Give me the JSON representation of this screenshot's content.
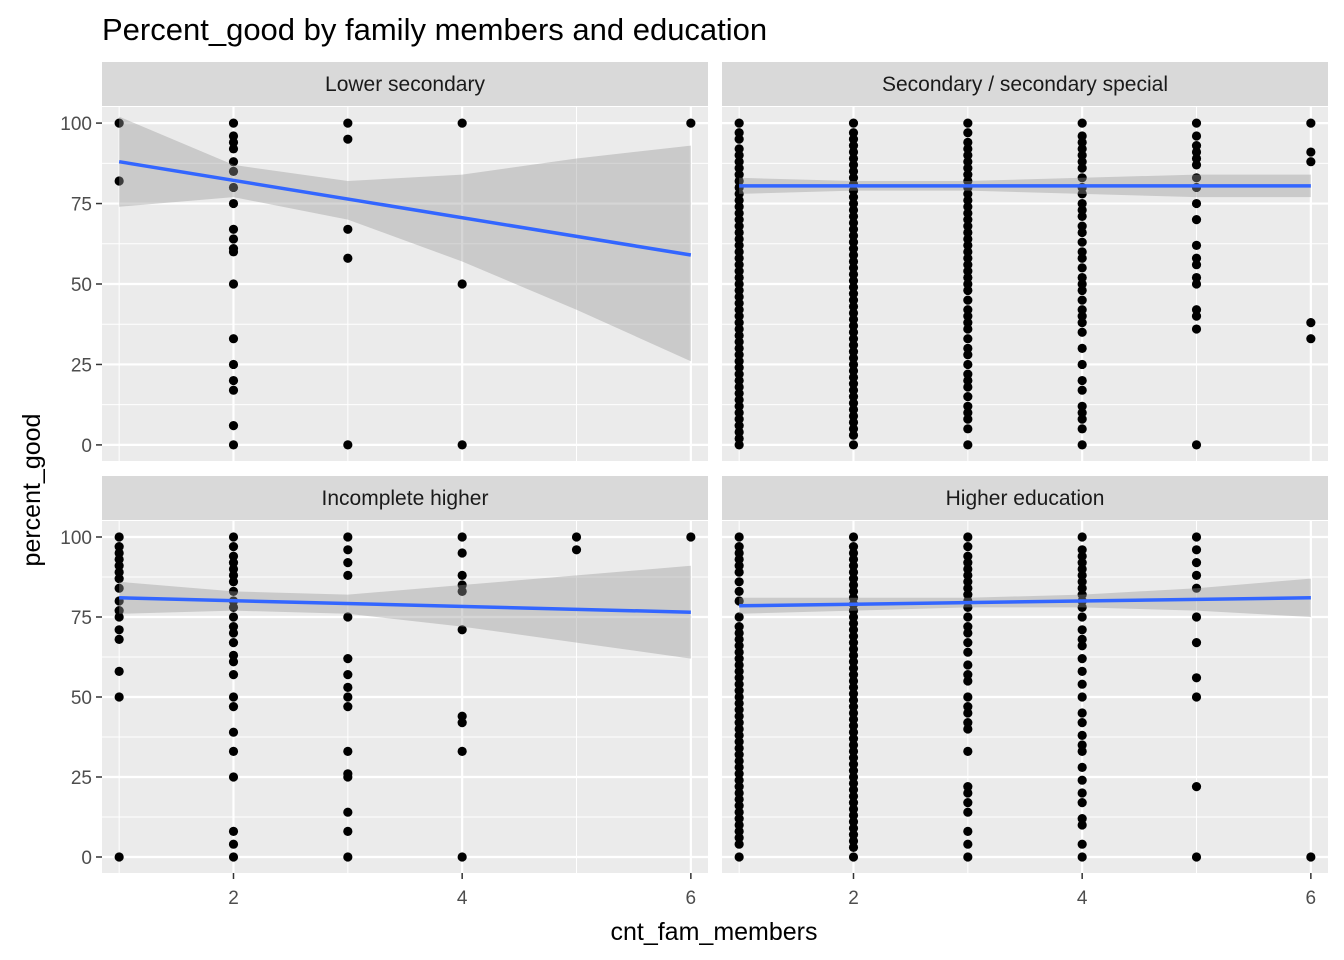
{
  "chart_data": {
    "type": "scatter",
    "title": "Percent_good by family members and education",
    "xlabel": "cnt_fam_members",
    "ylabel": "percent_good",
    "xlim": [
      0.85,
      6.15
    ],
    "ylim": [
      -5,
      105
    ],
    "x_ticks": [
      2,
      4,
      6
    ],
    "y_ticks": [
      0,
      25,
      50,
      75,
      100
    ],
    "grid": true,
    "legend": "none",
    "colors": {
      "panel_bg": "#EBEBEB",
      "strip_bg": "#D9D9D9",
      "grid": "#FFFFFF",
      "point": "#000000",
      "line": "#3366FF",
      "band": "#999999"
    },
    "panels": [
      {
        "label": "Lower secondary",
        "fit": {
          "x0": 1,
          "y0": 88,
          "x1": 6,
          "y1": 59
        },
        "band": [
          [
            1,
            74,
            102
          ],
          [
            2,
            77,
            87
          ],
          [
            3,
            70,
            82
          ],
          [
            4,
            57,
            84
          ],
          [
            5,
            42,
            89
          ],
          [
            6,
            26,
            93
          ]
        ],
        "points": [
          {
            "x": 1,
            "y": [
              100,
              82
            ]
          },
          {
            "x": 2,
            "y": [
              100,
              96,
              94,
              92,
              88,
              85,
              80,
              75,
              67,
              64,
              61,
              60,
              50,
              33,
              25,
              20,
              17,
              6,
              0
            ]
          },
          {
            "x": 3,
            "y": [
              100,
              95,
              67,
              58,
              0
            ]
          },
          {
            "x": 4,
            "y": [
              100,
              50,
              0
            ]
          },
          {
            "x": 6,
            "y": [
              100
            ]
          }
        ]
      },
      {
        "label": "Secondary / secondary special",
        "fit": {
          "x0": 1,
          "y0": 80.5,
          "x1": 6,
          "y1": 80.5
        },
        "band": [
          [
            1,
            78,
            83
          ],
          [
            2,
            79,
            82
          ],
          [
            3,
            79,
            82
          ],
          [
            4,
            78,
            83
          ],
          [
            5,
            77,
            84
          ],
          [
            6,
            77,
            84
          ]
        ],
        "points": [
          {
            "x": 1,
            "y": [
              100,
              97,
              95,
              92,
              90,
              88,
              86,
              84,
              82,
              80,
              78,
              76,
              74,
              72,
              70,
              68,
              66,
              64,
              62,
              60,
              58,
              56,
              54,
              52,
              50,
              48,
              46,
              44,
              42,
              40,
              38,
              36,
              34,
              32,
              30,
              28,
              26,
              24,
              22,
              20,
              18,
              16,
              14,
              12,
              10,
              8,
              6,
              4,
              2,
              0
            ]
          },
          {
            "x": 2,
            "y": [
              100,
              97,
              95,
              93,
              91,
              89,
              87,
              85,
              83,
              81,
              79,
              77,
              75,
              73,
              71,
              69,
              67,
              65,
              63,
              61,
              59,
              57,
              55,
              53,
              51,
              49,
              47,
              45,
              43,
              41,
              39,
              37,
              35,
              33,
              31,
              29,
              27,
              25,
              23,
              21,
              19,
              17,
              15,
              13,
              11,
              9,
              7,
              5,
              3,
              0
            ]
          },
          {
            "x": 3,
            "y": [
              100,
              97,
              94,
              92,
              90,
              88,
              86,
              84,
              82,
              80,
              78,
              76,
              74,
              72,
              70,
              68,
              66,
              64,
              62,
              60,
              58,
              56,
              54,
              52,
              50,
              48,
              45,
              42,
              40,
              38,
              36,
              33,
              30,
              28,
              25,
              22,
              20,
              18,
              15,
              12,
              10,
              8,
              5,
              0
            ]
          },
          {
            "x": 4,
            "y": [
              100,
              96,
              94,
              92,
              90,
              88,
              86,
              83,
              80,
              78,
              75,
              73,
              71,
              68,
              66,
              63,
              60,
              58,
              55,
              52,
              50,
              48,
              45,
              42,
              40,
              38,
              35,
              30,
              25,
              20,
              17,
              12,
              10,
              8,
              5,
              0
            ]
          },
          {
            "x": 5,
            "y": [
              100,
              96,
              93,
              91,
              89,
              87,
              83,
              80,
              75,
              70,
              62,
              58,
              56,
              52,
              50,
              42,
              40,
              36,
              0
            ]
          },
          {
            "x": 6,
            "y": [
              100,
              91,
              88,
              38,
              33
            ]
          }
        ]
      },
      {
        "label": "Incomplete higher",
        "fit": {
          "x0": 1,
          "y0": 81,
          "x1": 6,
          "y1": 76.5
        },
        "band": [
          [
            1,
            76,
            86
          ],
          [
            2,
            77,
            83
          ],
          [
            3,
            76,
            82
          ],
          [
            4,
            72,
            85
          ],
          [
            5,
            67,
            88
          ],
          [
            6,
            62,
            91
          ]
        ],
        "points": [
          {
            "x": 1,
            "y": [
              100,
              97,
              95,
              93,
              91,
              89,
              87,
              84,
              80,
              77,
              75,
              71,
              68,
              58,
              50,
              0
            ]
          },
          {
            "x": 2,
            "y": [
              100,
              97,
              94,
              92,
              90,
              88,
              86,
              83,
              80,
              78,
              75,
              72,
              70,
              67,
              63,
              61,
              57,
              50,
              47,
              39,
              33,
              25,
              8,
              4,
              0
            ]
          },
          {
            "x": 3,
            "y": [
              100,
              96,
              92,
              88,
              75,
              62,
              57,
              53,
              50,
              47,
              33,
              26,
              25,
              14,
              8,
              0
            ]
          },
          {
            "x": 4,
            "y": [
              100,
              95,
              88,
              85,
              83,
              71,
              44,
              42,
              33,
              0
            ]
          },
          {
            "x": 5,
            "y": [
              100,
              96
            ]
          },
          {
            "x": 6,
            "y": [
              100
            ]
          }
        ]
      },
      {
        "label": "Higher education",
        "fit": {
          "x0": 1,
          "y0": 78.5,
          "x1": 6,
          "y1": 81
        },
        "band": [
          [
            1,
            76,
            81
          ],
          [
            2,
            77,
            81
          ],
          [
            3,
            78,
            81
          ],
          [
            4,
            78,
            82
          ],
          [
            5,
            77,
            84
          ],
          [
            6,
            75,
            87
          ]
        ],
        "points": [
          {
            "x": 1,
            "y": [
              100,
              97,
              95,
              93,
              91,
              89,
              86,
              83,
              80,
              75,
              72,
              70,
              68,
              66,
              64,
              62,
              60,
              58,
              56,
              54,
              52,
              50,
              48,
              46,
              44,
              42,
              40,
              38,
              36,
              34,
              32,
              30,
              28,
              26,
              24,
              22,
              20,
              18,
              16,
              14,
              12,
              10,
              8,
              6,
              4,
              0
            ]
          },
          {
            "x": 2,
            "y": [
              100,
              97,
              95,
              93,
              91,
              89,
              87,
              85,
              83,
              81,
              79,
              77,
              75,
              73,
              71,
              69,
              67,
              65,
              63,
              61,
              59,
              57,
              55,
              53,
              51,
              49,
              47,
              45,
              43,
              41,
              39,
              37,
              35,
              33,
              31,
              29,
              27,
              25,
              23,
              21,
              19,
              17,
              15,
              13,
              11,
              9,
              7,
              5,
              3,
              0
            ]
          },
          {
            "x": 3,
            "y": [
              100,
              97,
              94,
              92,
              90,
              88,
              86,
              84,
              82,
              80,
              78,
              75,
              72,
              70,
              67,
              64,
              60,
              57,
              55,
              50,
              47,
              45,
              42,
              40,
              33,
              22,
              20,
              17,
              14,
              8,
              4,
              0
            ]
          },
          {
            "x": 4,
            "y": [
              100,
              96,
              94,
              92,
              90,
              88,
              86,
              84,
              82,
              80,
              78,
              75,
              71,
              68,
              66,
              62,
              58,
              54,
              50,
              45,
              42,
              38,
              35,
              33,
              28,
              24,
              20,
              17,
              12,
              10,
              4,
              0
            ]
          },
          {
            "x": 5,
            "y": [
              100,
              96,
              92,
              88,
              84,
              75,
              67,
              56,
              50,
              22,
              0
            ]
          },
          {
            "x": 6,
            "y": [
              0
            ]
          }
        ]
      }
    ]
  }
}
